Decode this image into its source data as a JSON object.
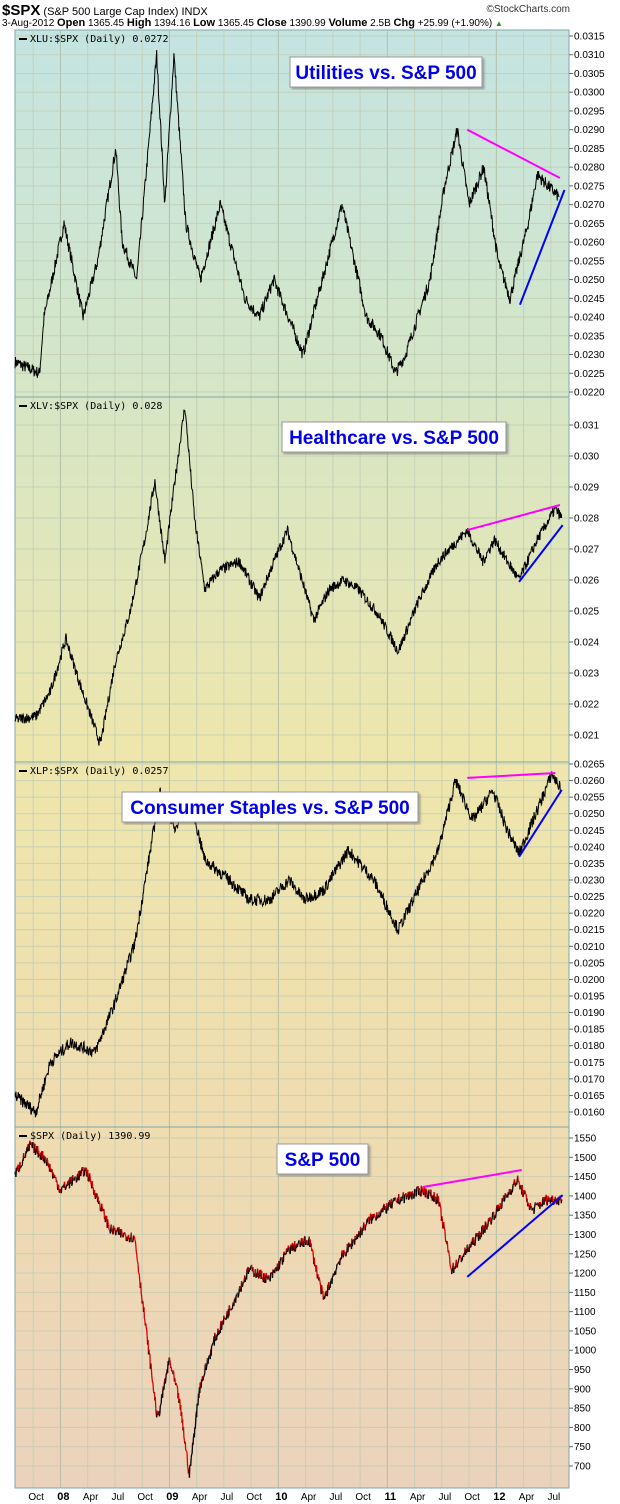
{
  "header": {
    "symbol": "$SPX",
    "name": "(S&P 500 Large Cap Index)",
    "exchange": "INDX",
    "credit": "©StockCharts.com",
    "date": "3-Aug-2012",
    "open_label": "Open",
    "open": "1365.45",
    "high_label": "High",
    "high": "1394.16",
    "low_label": "Low",
    "low": "1365.45",
    "close_label": "Close",
    "close": "1390.99",
    "volume_label": "Volume",
    "volume": "2.5B",
    "chg_label": "Chg",
    "chg": "+25.99 (+1.90%)",
    "up_arrow": "▲"
  },
  "chart_data": {
    "type": "line",
    "x_unit": "months since Aug 2007",
    "x_range": [
      0,
      61
    ],
    "x_ticks": [
      {
        "m": 2,
        "label": "Oct",
        "bold": false
      },
      {
        "m": 5,
        "label": "08",
        "bold": true
      },
      {
        "m": 8,
        "label": "Apr",
        "bold": false
      },
      {
        "m": 11,
        "label": "Jul",
        "bold": false
      },
      {
        "m": 14,
        "label": "Oct",
        "bold": false
      },
      {
        "m": 17,
        "label": "09",
        "bold": true
      },
      {
        "m": 20,
        "label": "Apr",
        "bold": false
      },
      {
        "m": 23,
        "label": "Jul",
        "bold": false
      },
      {
        "m": 26,
        "label": "Oct",
        "bold": false
      },
      {
        "m": 29,
        "label": "10",
        "bold": true
      },
      {
        "m": 32,
        "label": "Apr",
        "bold": false
      },
      {
        "m": 35,
        "label": "Jul",
        "bold": false
      },
      {
        "m": 38,
        "label": "Oct",
        "bold": false
      },
      {
        "m": 41,
        "label": "11",
        "bold": true
      },
      {
        "m": 44,
        "label": "Apr",
        "bold": false
      },
      {
        "m": 47,
        "label": "Jul",
        "bold": false
      },
      {
        "m": 50,
        "label": "Oct",
        "bold": false
      },
      {
        "m": 53,
        "label": "12",
        "bold": true
      },
      {
        "m": 56,
        "label": "Apr",
        "bold": false
      },
      {
        "m": 59,
        "label": "Jul",
        "bold": false
      }
    ],
    "panels": [
      {
        "label": "XLU:$SPX (Daily) 0.0272",
        "title": "Utilities vs. S&P 500",
        "ylim": [
          0.022,
          0.0315
        ],
        "ystep": 0.0005,
        "decimals": 4,
        "color": "#000000",
        "points": [
          [
            0,
            0.0228
          ],
          [
            2.7,
            0.0225
          ],
          [
            3.2,
            0.024
          ],
          [
            5.4,
            0.0265
          ],
          [
            7.5,
            0.024
          ],
          [
            9.1,
            0.0255
          ],
          [
            11.1,
            0.0285
          ],
          [
            11.8,
            0.026
          ],
          [
            13.4,
            0.025
          ],
          [
            15.6,
            0.031
          ],
          [
            16.5,
            0.027
          ],
          [
            17.5,
            0.031
          ],
          [
            18.8,
            0.0265
          ],
          [
            20.4,
            0.025
          ],
          [
            22.6,
            0.027
          ],
          [
            25.3,
            0.0245
          ],
          [
            26.9,
            0.024
          ],
          [
            28.5,
            0.025
          ],
          [
            31.7,
            0.023
          ],
          [
            33.3,
            0.0245
          ],
          [
            36,
            0.027
          ],
          [
            38.7,
            0.024
          ],
          [
            40.3,
            0.0235
          ],
          [
            41.9,
            0.0225
          ],
          [
            43,
            0.023
          ],
          [
            45.7,
            0.025
          ],
          [
            47.3,
            0.0275
          ],
          [
            48.7,
            0.029
          ],
          [
            50,
            0.027
          ],
          [
            51.6,
            0.028
          ],
          [
            53.2,
            0.0255
          ],
          [
            54.5,
            0.0245
          ],
          [
            56.5,
            0.0265
          ],
          [
            57.5,
            0.0278
          ],
          [
            59.9,
            0.0272
          ]
        ],
        "trendlines": [
          {
            "color": "#ff00ff",
            "from": [
              49.8,
              0.029
            ],
            "to": [
              60,
              0.02771
            ]
          },
          {
            "color": "#0000ff",
            "from": [
              55.6,
              0.02433
            ],
            "to": [
              60.5,
              0.02739
            ]
          }
        ]
      },
      {
        "label": "XLV:$SPX (Daily) 0.028",
        "title": "Healthcare vs. S&P 500",
        "ylim": [
          0.021,
          0.031
        ],
        "ystep": 0.001,
        "decimals": 3,
        "color": "#000000",
        "points": [
          [
            0,
            0.0215
          ],
          [
            2.3,
            0.0216
          ],
          [
            3.9,
            0.0224
          ],
          [
            5.6,
            0.0241
          ],
          [
            7.2,
            0.0226
          ],
          [
            9.4,
            0.0207
          ],
          [
            11.0,
            0.0233
          ],
          [
            12.7,
            0.025
          ],
          [
            14.3,
            0.0273
          ],
          [
            15.4,
            0.0292
          ],
          [
            16.5,
            0.0266
          ],
          [
            17.6,
            0.0292
          ],
          [
            18.7,
            0.0316
          ],
          [
            19.8,
            0.0279
          ],
          [
            20.9,
            0.0257
          ],
          [
            22.5,
            0.0263
          ],
          [
            24.7,
            0.0266
          ],
          [
            26.9,
            0.0254
          ],
          [
            28.5,
            0.0266
          ],
          [
            30,
            0.0276
          ],
          [
            31.3,
            0.0263
          ],
          [
            32.9,
            0.0247
          ],
          [
            34.6,
            0.0257
          ],
          [
            36.2,
            0.026
          ],
          [
            37.8,
            0.0257
          ],
          [
            40,
            0.0249
          ],
          [
            42.2,
            0.0237
          ],
          [
            44.4,
            0.0253
          ],
          [
            46.6,
            0.0266
          ],
          [
            48.8,
            0.0273
          ],
          [
            49.8,
            0.0276
          ],
          [
            51.5,
            0.0266
          ],
          [
            52.8,
            0.0273
          ],
          [
            54.2,
            0.0266
          ],
          [
            55.5,
            0.026
          ],
          [
            57.5,
            0.0273
          ],
          [
            59.5,
            0.0283
          ],
          [
            60.2,
            0.028
          ]
        ],
        "trendlines": [
          {
            "color": "#ff00ff",
            "from": [
              49.8,
              0.02761
            ],
            "to": [
              60,
              0.02842
            ]
          },
          {
            "color": "#0000ff",
            "from": [
              55.5,
              0.02594
            ],
            "to": [
              60.3,
              0.02777
            ]
          }
        ]
      },
      {
        "label": "XLP:$SPX (Daily) 0.0257",
        "title": "Consumer Staples vs. S&P 500",
        "ylim": [
          0.016,
          0.0265
        ],
        "ystep": 0.0005,
        "decimals": 4,
        "color": "#000000",
        "points": [
          [
            0,
            0.0165
          ],
          [
            2.3,
            0.016
          ],
          [
            3.9,
            0.0175
          ],
          [
            6.1,
            0.0181
          ],
          [
            8.8,
            0.0178
          ],
          [
            11,
            0.0193
          ],
          [
            13.2,
            0.0211
          ],
          [
            14.9,
            0.0239
          ],
          [
            16,
            0.0257
          ],
          [
            17.6,
            0.0245
          ],
          [
            19.3,
            0.0254
          ],
          [
            20.9,
            0.0236
          ],
          [
            23.6,
            0.023
          ],
          [
            25.8,
            0.0224
          ],
          [
            28,
            0.0224
          ],
          [
            30.2,
            0.023
          ],
          [
            31.8,
            0.0224
          ],
          [
            34,
            0.0227
          ],
          [
            36.7,
            0.0239
          ],
          [
            39.5,
            0.023
          ],
          [
            42.2,
            0.0215
          ],
          [
            44.4,
            0.0227
          ],
          [
            46.6,
            0.0239
          ],
          [
            48.5,
            0.026
          ],
          [
            50.4,
            0.0248
          ],
          [
            52.6,
            0.0257
          ],
          [
            54.2,
            0.0245
          ],
          [
            55.5,
            0.0238
          ],
          [
            57.5,
            0.0251
          ],
          [
            59.1,
            0.0262
          ],
          [
            60.2,
            0.0257
          ]
        ],
        "trendlines": [
          {
            "color": "#ff00ff",
            "from": [
              49.8,
              0.02608
            ],
            "to": [
              59.5,
              0.02623
            ]
          },
          {
            "color": "#0000ff",
            "from": [
              55.5,
              0.0237
            ],
            "to": [
              60.2,
              0.02572
            ]
          }
        ]
      },
      {
        "label": "$SPX (Daily) 1390.99",
        "title": "S&P 500",
        "ylim": [
          700,
          1550
        ],
        "ystep": 50,
        "decimals": 0,
        "color": "#dd0000",
        "upcolor": "#000000",
        "points": [
          [
            0,
            1454
          ],
          [
            1.7,
            1532
          ],
          [
            3.4,
            1495
          ],
          [
            5,
            1415
          ],
          [
            7.8,
            1467
          ],
          [
            10.5,
            1312
          ],
          [
            13.2,
            1290
          ],
          [
            14.3,
            1078
          ],
          [
            15.7,
            819
          ],
          [
            17,
            975
          ],
          [
            18.1,
            870
          ],
          [
            19.2,
            677
          ],
          [
            20.3,
            900
          ],
          [
            22,
            1030
          ],
          [
            23.6,
            1104
          ],
          [
            25.8,
            1210
          ],
          [
            28,
            1183
          ],
          [
            30.2,
            1262
          ],
          [
            32.4,
            1286
          ],
          [
            34,
            1130
          ],
          [
            35.7,
            1233
          ],
          [
            39,
            1337
          ],
          [
            42.2,
            1390
          ],
          [
            44.9,
            1415
          ],
          [
            46.6,
            1390
          ],
          [
            48.1,
            1208
          ],
          [
            49.8,
            1260
          ],
          [
            51.5,
            1311
          ],
          [
            53.1,
            1363
          ],
          [
            55.3,
            1441
          ],
          [
            56.9,
            1363
          ],
          [
            58.5,
            1390
          ],
          [
            60.2,
            1391
          ]
        ],
        "trendlines": [
          {
            "color": "#ff00ff",
            "from": [
              44.9,
              1423
            ],
            "to": [
              55.8,
              1467
            ]
          },
          {
            "color": "#0000ff",
            "from": [
              49.8,
              1190
            ],
            "to": [
              60.3,
              1402
            ]
          }
        ]
      }
    ]
  }
}
